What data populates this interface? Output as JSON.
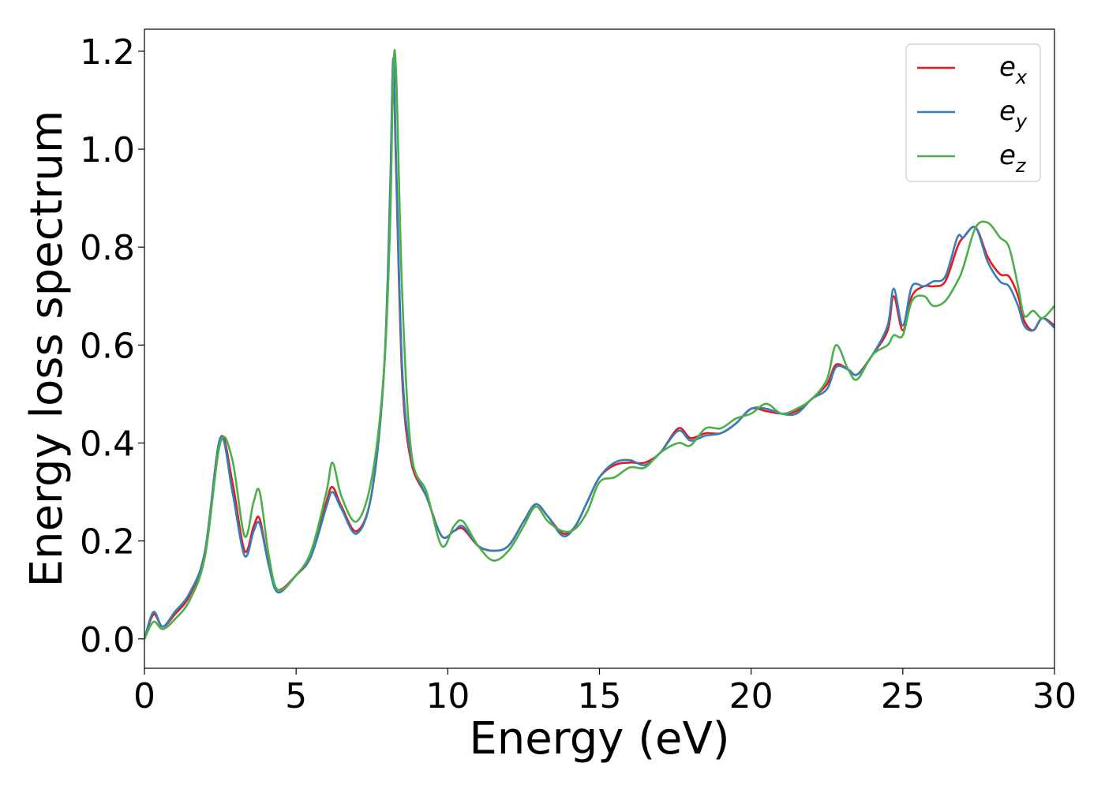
{
  "chart_data": {
    "type": "line",
    "xlabel": "Energy (eV)",
    "ylabel": "Energy loss spectrum",
    "xlim": [
      0,
      30
    ],
    "ylim": [
      -0.06,
      1.245
    ],
    "xticks": [
      "0",
      "5",
      "10",
      "15",
      "20",
      "25",
      "30"
    ],
    "yticks": [
      "0.0",
      "0.2",
      "0.4",
      "0.6",
      "0.8",
      "1.0",
      "1.2"
    ],
    "grid": false,
    "legend_position": "top-right",
    "series": [
      {
        "name": "e",
        "subscript": "x",
        "color": "#e41a1c",
        "x": [
          0,
          0.3,
          0.6,
          1.0,
          1.5,
          2.0,
          2.5,
          2.9,
          3.3,
          3.6,
          3.8,
          4.1,
          4.4,
          5.0,
          5.5,
          6.0,
          6.2,
          6.5,
          7.0,
          7.5,
          7.9,
          8.1,
          8.2,
          8.3,
          8.5,
          8.8,
          9.3,
          9.8,
          10.2,
          10.5,
          11.0,
          11.5,
          12.0,
          12.5,
          12.9,
          13.3,
          13.8,
          14.2,
          14.6,
          15.0,
          15.5,
          16.0,
          16.5,
          17.0,
          17.6,
          18.0,
          18.5,
          19.0,
          19.5,
          20.0,
          20.5,
          21.0,
          21.5,
          22.0,
          22.5,
          22.8,
          23.2,
          23.5,
          24.0,
          24.5,
          24.7,
          25.0,
          25.3,
          25.7,
          26.0,
          26.4,
          26.8,
          27.0,
          27.4,
          27.8,
          28.2,
          28.5,
          28.8,
          29.0,
          29.3,
          29.6,
          30.0
        ],
        "values": [
          0.0,
          0.05,
          0.025,
          0.05,
          0.09,
          0.18,
          0.41,
          0.32,
          0.18,
          0.23,
          0.245,
          0.15,
          0.1,
          0.13,
          0.17,
          0.28,
          0.31,
          0.27,
          0.22,
          0.3,
          0.55,
          0.9,
          1.18,
          0.95,
          0.53,
          0.36,
          0.29,
          0.21,
          0.22,
          0.225,
          0.19,
          0.18,
          0.19,
          0.24,
          0.275,
          0.25,
          0.215,
          0.23,
          0.28,
          0.33,
          0.355,
          0.36,
          0.36,
          0.38,
          0.43,
          0.41,
          0.42,
          0.42,
          0.44,
          0.47,
          0.465,
          0.46,
          0.465,
          0.49,
          0.52,
          0.56,
          0.55,
          0.54,
          0.58,
          0.63,
          0.7,
          0.63,
          0.7,
          0.72,
          0.72,
          0.73,
          0.8,
          0.82,
          0.84,
          0.78,
          0.745,
          0.74,
          0.7,
          0.65,
          0.63,
          0.655,
          0.64
        ]
      },
      {
        "name": "e",
        "subscript": "y",
        "color": "#377eb8",
        "x": [
          0,
          0.3,
          0.6,
          1.0,
          1.5,
          2.0,
          2.5,
          2.9,
          3.3,
          3.6,
          3.8,
          4.1,
          4.4,
          5.0,
          5.5,
          6.0,
          6.2,
          6.5,
          7.0,
          7.5,
          7.9,
          8.1,
          8.2,
          8.3,
          8.5,
          8.8,
          9.3,
          9.8,
          10.2,
          10.5,
          11.0,
          11.5,
          12.0,
          12.5,
          12.9,
          13.3,
          13.8,
          14.2,
          14.6,
          15.0,
          15.5,
          16.0,
          16.5,
          17.0,
          17.6,
          18.0,
          18.5,
          19.0,
          19.5,
          20.0,
          20.5,
          21.0,
          21.5,
          22.0,
          22.5,
          22.8,
          23.2,
          23.5,
          24.0,
          24.5,
          24.7,
          25.0,
          25.3,
          25.7,
          26.0,
          26.4,
          26.8,
          27.0,
          27.4,
          27.8,
          28.2,
          28.5,
          28.8,
          29.0,
          29.3,
          29.6,
          30.0
        ],
        "values": [
          0.0,
          0.055,
          0.025,
          0.055,
          0.095,
          0.18,
          0.41,
          0.3,
          0.17,
          0.22,
          0.235,
          0.15,
          0.095,
          0.13,
          0.17,
          0.27,
          0.3,
          0.265,
          0.215,
          0.3,
          0.55,
          0.92,
          1.185,
          0.97,
          0.55,
          0.37,
          0.29,
          0.21,
          0.22,
          0.23,
          0.19,
          0.18,
          0.19,
          0.24,
          0.275,
          0.25,
          0.21,
          0.23,
          0.28,
          0.33,
          0.36,
          0.365,
          0.355,
          0.38,
          0.425,
          0.405,
          0.415,
          0.42,
          0.44,
          0.47,
          0.47,
          0.46,
          0.46,
          0.49,
          0.51,
          0.555,
          0.55,
          0.54,
          0.58,
          0.64,
          0.715,
          0.64,
          0.72,
          0.72,
          0.73,
          0.74,
          0.82,
          0.82,
          0.84,
          0.77,
          0.73,
          0.72,
          0.68,
          0.64,
          0.63,
          0.655,
          0.635
        ]
      },
      {
        "name": "e",
        "subscript": "z",
        "color": "#4daf4a",
        "x": [
          0,
          0.3,
          0.6,
          1.0,
          1.5,
          2.0,
          2.5,
          2.9,
          3.3,
          3.6,
          3.8,
          4.1,
          4.4,
          5.0,
          5.5,
          6.0,
          6.2,
          6.5,
          7.0,
          7.5,
          7.9,
          8.1,
          8.2,
          8.3,
          8.5,
          8.8,
          9.3,
          9.8,
          10.2,
          10.5,
          11.0,
          11.5,
          12.0,
          12.5,
          12.9,
          13.3,
          13.8,
          14.2,
          14.6,
          15.0,
          15.5,
          16.0,
          16.5,
          17.0,
          17.6,
          18.0,
          18.5,
          19.0,
          19.5,
          20.0,
          20.5,
          21.0,
          21.5,
          22.0,
          22.5,
          22.8,
          23.2,
          23.5,
          24.0,
          24.5,
          24.7,
          25.0,
          25.3,
          25.7,
          26.0,
          26.4,
          26.8,
          27.0,
          27.4,
          27.8,
          28.2,
          28.5,
          28.8,
          29.0,
          29.3,
          29.6,
          30.0
        ],
        "values": [
          0.0,
          0.035,
          0.02,
          0.04,
          0.08,
          0.17,
          0.4,
          0.365,
          0.21,
          0.28,
          0.3,
          0.17,
          0.1,
          0.13,
          0.18,
          0.3,
          0.36,
          0.29,
          0.24,
          0.33,
          0.55,
          0.85,
          1.16,
          1.15,
          0.7,
          0.38,
          0.3,
          0.19,
          0.23,
          0.24,
          0.19,
          0.16,
          0.18,
          0.23,
          0.27,
          0.24,
          0.22,
          0.225,
          0.26,
          0.32,
          0.33,
          0.35,
          0.35,
          0.38,
          0.4,
          0.395,
          0.43,
          0.43,
          0.45,
          0.46,
          0.48,
          0.46,
          0.47,
          0.49,
          0.53,
          0.6,
          0.55,
          0.53,
          0.58,
          0.6,
          0.62,
          0.62,
          0.69,
          0.7,
          0.68,
          0.69,
          0.73,
          0.76,
          0.84,
          0.85,
          0.82,
          0.8,
          0.72,
          0.66,
          0.67,
          0.655,
          0.68
        ]
      }
    ]
  }
}
